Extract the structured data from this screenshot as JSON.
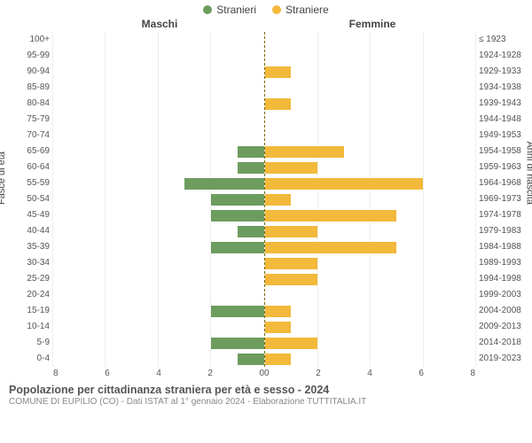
{
  "legend": {
    "male": {
      "label": "Stranieri",
      "color": "#6d9c5f"
    },
    "female": {
      "label": "Straniere",
      "color": "#f2b93b"
    }
  },
  "headers": {
    "left": "Maschi",
    "right": "Femmine"
  },
  "axes": {
    "y_left_title": "Fasce di età",
    "y_right_title": "Anni di nascita",
    "x_max": 8,
    "x_ticks_left": [
      "8",
      "6",
      "4",
      "2",
      "0"
    ],
    "x_ticks_right": [
      "0",
      "2",
      "4",
      "6",
      "8"
    ],
    "grid_color": "#eeeeee",
    "center_line_color": "#7a6a00"
  },
  "rows": [
    {
      "age": "100+",
      "birth": "≤ 1923",
      "m": 0,
      "f": 0
    },
    {
      "age": "95-99",
      "birth": "1924-1928",
      "m": 0,
      "f": 0
    },
    {
      "age": "90-94",
      "birth": "1929-1933",
      "m": 0,
      "f": 1
    },
    {
      "age": "85-89",
      "birth": "1934-1938",
      "m": 0,
      "f": 0
    },
    {
      "age": "80-84",
      "birth": "1939-1943",
      "m": 0,
      "f": 1
    },
    {
      "age": "75-79",
      "birth": "1944-1948",
      "m": 0,
      "f": 0
    },
    {
      "age": "70-74",
      "birth": "1949-1953",
      "m": 0,
      "f": 0
    },
    {
      "age": "65-69",
      "birth": "1954-1958",
      "m": 1,
      "f": 3
    },
    {
      "age": "60-64",
      "birth": "1959-1963",
      "m": 1,
      "f": 2
    },
    {
      "age": "55-59",
      "birth": "1964-1968",
      "m": 3,
      "f": 6
    },
    {
      "age": "50-54",
      "birth": "1969-1973",
      "m": 2,
      "f": 1
    },
    {
      "age": "45-49",
      "birth": "1974-1978",
      "m": 2,
      "f": 5
    },
    {
      "age": "40-44",
      "birth": "1979-1983",
      "m": 1,
      "f": 2
    },
    {
      "age": "35-39",
      "birth": "1984-1988",
      "m": 2,
      "f": 5
    },
    {
      "age": "30-34",
      "birth": "1989-1993",
      "m": 0,
      "f": 2
    },
    {
      "age": "25-29",
      "birth": "1994-1998",
      "m": 0,
      "f": 2
    },
    {
      "age": "20-24",
      "birth": "1999-2003",
      "m": 0,
      "f": 0
    },
    {
      "age": "15-19",
      "birth": "2004-2008",
      "m": 2,
      "f": 1
    },
    {
      "age": "10-14",
      "birth": "2009-2013",
      "m": 0,
      "f": 1
    },
    {
      "age": "5-9",
      "birth": "2014-2018",
      "m": 2,
      "f": 2
    },
    {
      "age": "0-4",
      "birth": "2019-2023",
      "m": 1,
      "f": 1
    }
  ],
  "colors": {
    "male_bar": "#6d9c5f",
    "female_bar": "#f2b93b",
    "background": "#ffffff",
    "text": "#555555"
  },
  "footer": {
    "title": "Popolazione per cittadinanza straniera per età e sesso - 2024",
    "subtitle": "COMUNE DI EUPILIO (CO) - Dati ISTAT al 1° gennaio 2024 - Elaborazione TUTTITALIA.IT"
  }
}
